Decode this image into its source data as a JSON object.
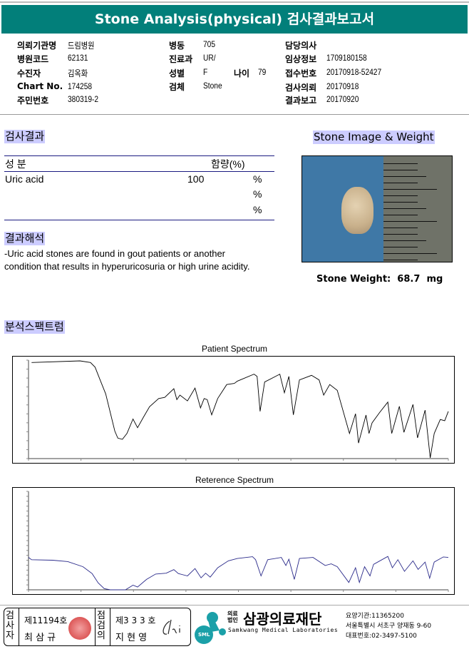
{
  "header": {
    "title": "Stone Analysis(physical) 검사결과보고서",
    "bar_color": "#027f7a"
  },
  "info": {
    "institution": {
      "label": "의뢰기관명",
      "value": "드림병원"
    },
    "hospital_code": {
      "label": "병원코드",
      "value": "62131"
    },
    "patient": {
      "label": "수진자",
      "value": "김옥화"
    },
    "chart_no": {
      "label": "Chart No.",
      "value": "174258"
    },
    "resident_no": {
      "label": "주민번호",
      "value": "380319-2"
    },
    "ward": {
      "label": "병동",
      "value": "705"
    },
    "department": {
      "label": "진료과",
      "value": "UR/"
    },
    "sex": {
      "label": "성별",
      "value": "F"
    },
    "age": {
      "label": "나이",
      "value": "79"
    },
    "specimen": {
      "label": "검체",
      "value": "Stone"
    },
    "doctor": {
      "label": "담당의사",
      "value": ""
    },
    "clinical_info": {
      "label": "임상정보",
      "value": "1709180158"
    },
    "receipt_no": {
      "label": "접수번호",
      "value": "20170918-52427"
    },
    "request_date": {
      "label": "검사의뢰",
      "value": "20170918"
    },
    "report_date": {
      "label": "결과보고",
      "value": "20170920"
    }
  },
  "results": {
    "heading": "검사결과",
    "col_component": "성 분",
    "col_content": "함량(%)",
    "rows": [
      {
        "component": "Uric acid",
        "value": "100",
        "unit": "%"
      },
      {
        "component": "",
        "value": "",
        "unit": "%"
      },
      {
        "component": "",
        "value": "",
        "unit": "%"
      }
    ]
  },
  "interpretation": {
    "heading": "결과해석",
    "line1": " -Uric acid stones are found in gout patients or another",
    "line2": "condition that results in hyperuricosuria or high urine acidity."
  },
  "stone": {
    "heading": "Stone Image & Weight",
    "weight_label": "Stone Weight:",
    "weight_value": "68.7",
    "weight_unit": "mg"
  },
  "spectrum": {
    "heading": "분석스팩트럼"
  },
  "heading_bg": "#ccccff",
  "chart_data": [
    {
      "type": "line",
      "title": "Patient Spectrum",
      "xlim": [
        4000,
        400
      ],
      "ylim": [
        0,
        100
      ],
      "color": "#000000",
      "grid": false,
      "points": [
        [
          3974,
          97.6
        ],
        [
          3559,
          99.3
        ],
        [
          3468,
          97.6
        ],
        [
          3429,
          92.9
        ],
        [
          3390,
          81.1
        ],
        [
          3338,
          65.7
        ],
        [
          3299,
          46.8
        ],
        [
          3260,
          27.9
        ],
        [
          3234,
          20.8
        ],
        [
          3195,
          19.6
        ],
        [
          3156,
          25.5
        ],
        [
          3104,
          40.2
        ],
        [
          3065,
          31.4
        ],
        [
          3014,
          42.1
        ],
        [
          2962,
          52.7
        ],
        [
          2884,
          61.0
        ],
        [
          2832,
          62.2
        ],
        [
          2754,
          71.0
        ],
        [
          2728,
          59.9
        ],
        [
          2702,
          64.5
        ],
        [
          2637,
          58.6
        ],
        [
          2572,
          71.6
        ],
        [
          2525,
          51.5
        ],
        [
          2494,
          61.0
        ],
        [
          2468,
          59.9
        ],
        [
          2429,
          44.4
        ],
        [
          2378,
          61.0
        ],
        [
          2300,
          75.2
        ],
        [
          2235,
          76.4
        ],
        [
          2209,
          78.7
        ],
        [
          2066,
          85.8
        ],
        [
          2040,
          83.5
        ],
        [
          2014,
          48.0
        ],
        [
          1975,
          77.8
        ],
        [
          1845,
          85.8
        ],
        [
          1806,
          66.9
        ],
        [
          1767,
          83.5
        ],
        [
          1729,
          44.4
        ],
        [
          1677,
          79.9
        ],
        [
          1573,
          84.6
        ],
        [
          1508,
          79.9
        ],
        [
          1469,
          64.5
        ],
        [
          1417,
          75.2
        ],
        [
          1352,
          69.3
        ],
        [
          1248,
          25.5
        ],
        [
          1196,
          45.6
        ],
        [
          1170,
          15.8
        ],
        [
          1106,
          44.2
        ],
        [
          1080,
          25.5
        ],
        [
          1054,
          36.2
        ],
        [
          989,
          46.8
        ],
        [
          919,
          57.4
        ],
        [
          885,
          25.5
        ],
        [
          820,
          53.1
        ],
        [
          781,
          26.7
        ],
        [
          703,
          55.0
        ],
        [
          664,
          21.0
        ],
        [
          599,
          49.2
        ],
        [
          555,
          0.7
        ],
        [
          521,
          25.5
        ],
        [
          469,
          39.7
        ],
        [
          431,
          38.5
        ],
        [
          400,
          48.0
        ]
      ]
    },
    {
      "type": "line",
      "title": "Reterence Spectrum",
      "xlim": [
        4000,
        400
      ],
      "ylim": [
        0,
        100
      ],
      "color": "#2a2a8a",
      "grid": false,
      "points": [
        [
          4000,
          33.0
        ],
        [
          3974,
          30.6
        ],
        [
          3792,
          30.1
        ],
        [
          3663,
          28.7
        ],
        [
          3533,
          23.5
        ],
        [
          3455,
          16.5
        ],
        [
          3403,
          7.1
        ],
        [
          3351,
          1.2
        ],
        [
          3299,
          0
        ],
        [
          3169,
          0
        ],
        [
          3104,
          4.7
        ],
        [
          3065,
          2.8
        ],
        [
          2988,
          10.6
        ],
        [
          2910,
          16.0
        ],
        [
          2819,
          16.9
        ],
        [
          2754,
          20.5
        ],
        [
          2715,
          16.5
        ],
        [
          2637,
          14.1
        ],
        [
          2572,
          21.6
        ],
        [
          2520,
          12.2
        ],
        [
          2481,
          16.9
        ],
        [
          2442,
          12.9
        ],
        [
          2378,
          22.4
        ],
        [
          2287,
          29.4
        ],
        [
          2209,
          31.8
        ],
        [
          2079,
          33.6
        ],
        [
          2053,
          30.6
        ],
        [
          2006,
          14.1
        ],
        [
          1949,
          30.6
        ],
        [
          1832,
          32.9
        ],
        [
          1793,
          24.7
        ],
        [
          1767,
          31.1
        ],
        [
          1721,
          10.6
        ],
        [
          1677,
          31.8
        ],
        [
          1560,
          32.9
        ],
        [
          1456,
          24.7
        ],
        [
          1404,
          26.4
        ],
        [
          1352,
          23.5
        ],
        [
          1253,
          7.5
        ],
        [
          1196,
          22.4
        ],
        [
          1163,
          7.5
        ],
        [
          1118,
          23.5
        ],
        [
          1072,
          14.1
        ],
        [
          1041,
          25.9
        ],
        [
          919,
          33.9
        ],
        [
          880,
          22.4
        ],
        [
          833,
          30.6
        ],
        [
          776,
          18.8
        ],
        [
          703,
          29.4
        ],
        [
          659,
          20.7
        ],
        [
          599,
          28.2
        ],
        [
          560,
          11.8
        ],
        [
          521,
          28.2
        ],
        [
          443,
          33.4
        ],
        [
          400,
          32.9
        ]
      ]
    }
  ],
  "footer": {
    "inspector_label": "검사자",
    "inspector_no": "제11194호",
    "inspector_name": "최 삼 규",
    "reviewer_label": "점검의",
    "reviewer_no": "제3 3 3 호",
    "reviewer_name": "지 현 영",
    "logo_prefix_top": "의료",
    "logo_prefix_bottom": "법인",
    "org_name": "삼광의료재단",
    "org_name_en": "Samkwang Medical Laboratories",
    "logo_mark": "SML",
    "institution_code": "요양기관:11365200",
    "address": "서울특별시 서초구 양재동 9-60",
    "phone": "대표번호:02-3497-5100",
    "logo_color": "#1ba0a8",
    "seal_color": "#d33a3a"
  }
}
